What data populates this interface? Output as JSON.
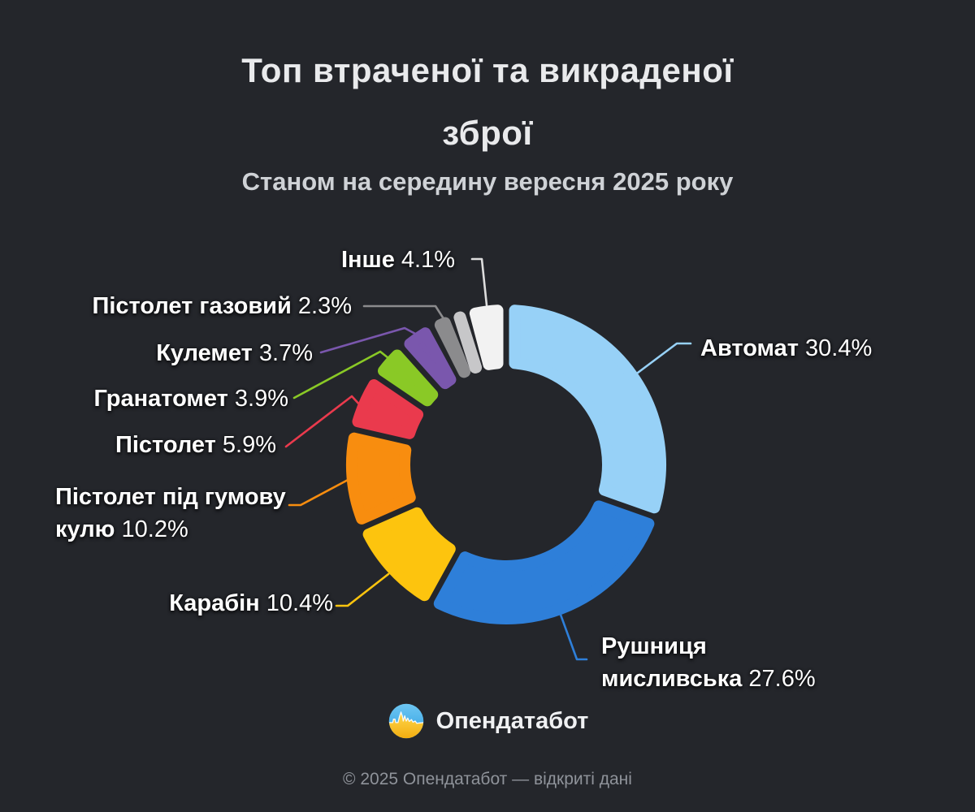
{
  "title": {
    "line1": "Топ втраченої та викраденої",
    "line2": "зброї"
  },
  "subtitle": "Станом на середину вересня 2025 року",
  "chart_data": {
    "type": "pie",
    "variant": "donut",
    "title": "Топ втраченої та викраденої зброї",
    "subtitle": "Станом на середину вересня 2025 року",
    "unit": "%",
    "start_angle_deg": 0,
    "direction": "clockwise",
    "legend_position": "callout-labels",
    "segments": [
      {
        "label": "Автомат",
        "value": 30.4,
        "color": "#97d1f7",
        "display": [
          "Автомат 30.4%"
        ]
      },
      {
        "label": "Рушниця мисливська",
        "value": 27.6,
        "color": "#2e7fd9",
        "display": [
          "Рушниця",
          "мисливська 27.6%"
        ]
      },
      {
        "label": "Карабін",
        "value": 10.4,
        "color": "#fdc40e",
        "display": [
          "Карабін 10.4%"
        ]
      },
      {
        "label": "Пістолет під гумову кулю",
        "value": 10.2,
        "color": "#f88d0f",
        "display": [
          "Пістолет під гумову",
          "кулю 10.2%"
        ]
      },
      {
        "label": "Пістолет",
        "value": 5.9,
        "color": "#ea3a4d",
        "display": [
          "Пістолет 5.9%"
        ]
      },
      {
        "label": "Гранатомет",
        "value": 3.9,
        "color": "#8ac926",
        "display": [
          "Гранатомет 3.9%"
        ]
      },
      {
        "label": "Кулемет",
        "value": 3.7,
        "color": "#7a57ad",
        "display": [
          "Кулемет 3.7%"
        ]
      },
      {
        "label": "Пістолет газовий",
        "value": 2.3,
        "color": "#8b8b8d",
        "display": [
          "Пістолет газовий 2.3%"
        ]
      },
      {
        "label": "",
        "value": 1.5,
        "color": "#c7c7c9",
        "display": []
      },
      {
        "label": "Інше",
        "value": 4.1,
        "color": "#f2f2f2",
        "display": [
          "Інше 4.1%"
        ]
      }
    ]
  },
  "branding": {
    "logo_text": "Опендатабот"
  },
  "footer": "© 2025 Опендатабот — відкриті дані",
  "colors": {
    "background": "#24262b",
    "title_text": "#e9eaec",
    "subtitle_text": "#cfd2d6",
    "label_text": "#ffffff",
    "footer_text": "#8f939a",
    "logo_blue": "#3aa6e8",
    "logo_yellow": "#fcc32c"
  }
}
